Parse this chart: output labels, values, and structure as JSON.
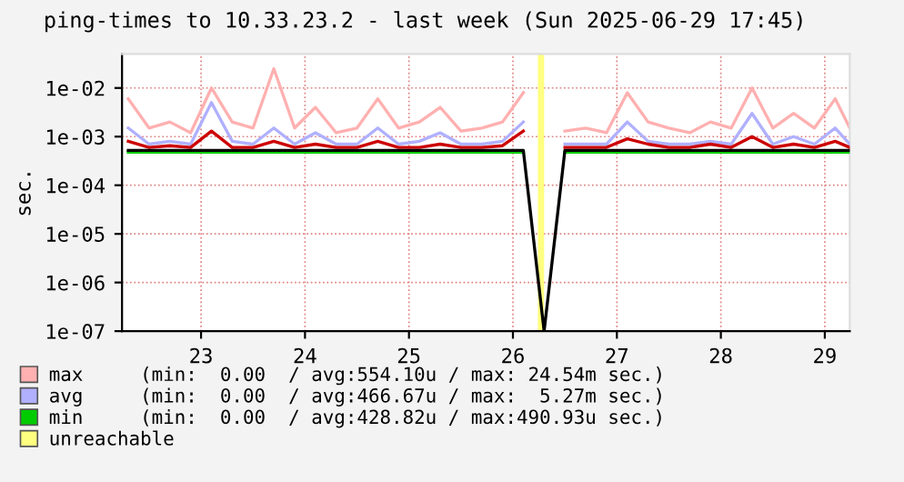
{
  "chart_data": {
    "type": "line",
    "title": "ping-times to 10.33.23.2 - last week (Sun 2025-06-29 17:45)",
    "ylabel": "sec.",
    "x": [
      22.8,
      23.0,
      23.2,
      23.4,
      23.6,
      23.8,
      24.0,
      24.2,
      24.4,
      24.6,
      24.8,
      25.0,
      25.2,
      25.4,
      25.6,
      25.8,
      26.0,
      26.2,
      26.4,
      26.6,
      26.8,
      27.0,
      27.2,
      27.4,
      27.6,
      27.8,
      28.0,
      28.2,
      28.4,
      28.6,
      28.8,
      29.0,
      29.2,
      29.4,
      29.6,
      29.74
    ],
    "series": [
      {
        "name": "max     (min:  0.00  / avg:554.10u / max: 24.54m sec.)",
        "color": "#ffb0b0",
        "values": [
          0.006,
          0.0015,
          0.002,
          0.0012,
          0.01,
          0.002,
          0.0015,
          0.025,
          0.0015,
          0.004,
          0.0012,
          0.0015,
          0.006,
          0.0015,
          0.002,
          0.004,
          0.0013,
          0.0015,
          0.002,
          0.008,
          null,
          0.0013,
          0.0015,
          0.0012,
          0.008,
          0.002,
          0.0015,
          0.0012,
          0.002,
          0.0015,
          0.01,
          0.0015,
          0.003,
          0.0015,
          0.006,
          0.0015
        ]
      },
      {
        "name": "avg     (min:  0.00  / avg:466.67u / max:  5.27m sec.)",
        "color": "#b0b0ff",
        "values": [
          0.0015,
          0.0007,
          0.0008,
          0.0007,
          0.005,
          0.0008,
          0.0007,
          0.0015,
          0.0007,
          0.0012,
          0.0007,
          0.0007,
          0.0015,
          0.0007,
          0.0008,
          0.0012,
          0.0007,
          0.0007,
          0.0008,
          0.002,
          null,
          0.0007,
          0.0007,
          0.0007,
          0.002,
          0.0008,
          0.0007,
          0.0007,
          0.0008,
          0.0007,
          0.003,
          0.0007,
          0.001,
          0.0007,
          0.0015,
          0.0007
        ]
      },
      {
        "name": "min     (min:  0.00  / avg:428.82u / max:490.93u sec.)",
        "color": "#00cc00",
        "values": [
          0.00048,
          0.00048,
          0.00048,
          0.00048,
          0.00048,
          0.00048,
          0.00048,
          0.00048,
          0.00048,
          0.00048,
          0.00048,
          0.00048,
          0.00048,
          0.00048,
          0.00048,
          0.00048,
          0.00048,
          0.00048,
          0.00048,
          0.00048,
          null,
          0.00048,
          0.00048,
          0.00048,
          0.00048,
          0.00048,
          0.00048,
          0.00048,
          0.00048,
          0.00048,
          0.00048,
          0.00048,
          0.00048,
          0.00048,
          0.00048,
          0.00048
        ]
      },
      {
        "color": "#cc0000",
        "values": [
          0.0008,
          0.0006,
          0.00065,
          0.0006,
          0.0013,
          0.0006,
          0.0006,
          0.0008,
          0.0006,
          0.0007,
          0.0006,
          0.0006,
          0.0008,
          0.0006,
          0.0006,
          0.0007,
          0.0006,
          0.0006,
          0.00065,
          0.0013,
          null,
          0.0006,
          0.0006,
          0.0006,
          0.0009,
          0.0007,
          0.0006,
          0.0006,
          0.0007,
          0.0006,
          0.001,
          0.0006,
          0.0007,
          0.0006,
          0.0008,
          0.0006
        ]
      },
      {
        "color": "#000000",
        "values": [
          0.00052,
          0.00052,
          0.00052,
          0.00052,
          0.00052,
          0.00052,
          0.00052,
          0.00052,
          0.00052,
          0.00052,
          0.00052,
          0.00052,
          0.00052,
          0.00052,
          0.00052,
          0.00052,
          0.00052,
          0.00052,
          0.00052,
          0.00052,
          1e-07,
          0.00052,
          0.00052,
          0.00052,
          0.00052,
          0.00052,
          0.00052,
          0.00052,
          0.00052,
          0.00052,
          0.00052,
          0.00052,
          0.00052,
          0.00052,
          0.00052,
          0.00052
        ]
      }
    ],
    "bands": [
      {
        "axis": "x",
        "from": 26.74,
        "to": 26.8,
        "label": "unreachable",
        "color": "#ffff80"
      }
    ],
    "log": "y",
    "xlim": [
      22.74,
      29.74
    ],
    "xticks": [
      {
        "value": 23.5,
        "label": "23"
      },
      {
        "value": 24.5,
        "label": "24"
      },
      {
        "value": 25.5,
        "label": "25"
      },
      {
        "value": 26.5,
        "label": "26"
      },
      {
        "value": 27.5,
        "label": "27"
      },
      {
        "value": 28.5,
        "label": "28"
      },
      {
        "value": 29.5,
        "label": "29"
      }
    ],
    "ylim": [
      1e-07,
      0.05
    ],
    "yticks": [
      {
        "value": 1e-07,
        "label": "1e-07"
      },
      {
        "value": 1e-06,
        "label": "1e-06"
      },
      {
        "value": 1e-05,
        "label": "1e-05"
      },
      {
        "value": 0.0001,
        "label": "1e-04"
      },
      {
        "value": 0.001,
        "label": "1e-03"
      },
      {
        "value": 0.01,
        "label": "1e-02"
      }
    ],
    "grid": true,
    "legend": "bottom",
    "line_style": "solid",
    "marker": "none"
  }
}
